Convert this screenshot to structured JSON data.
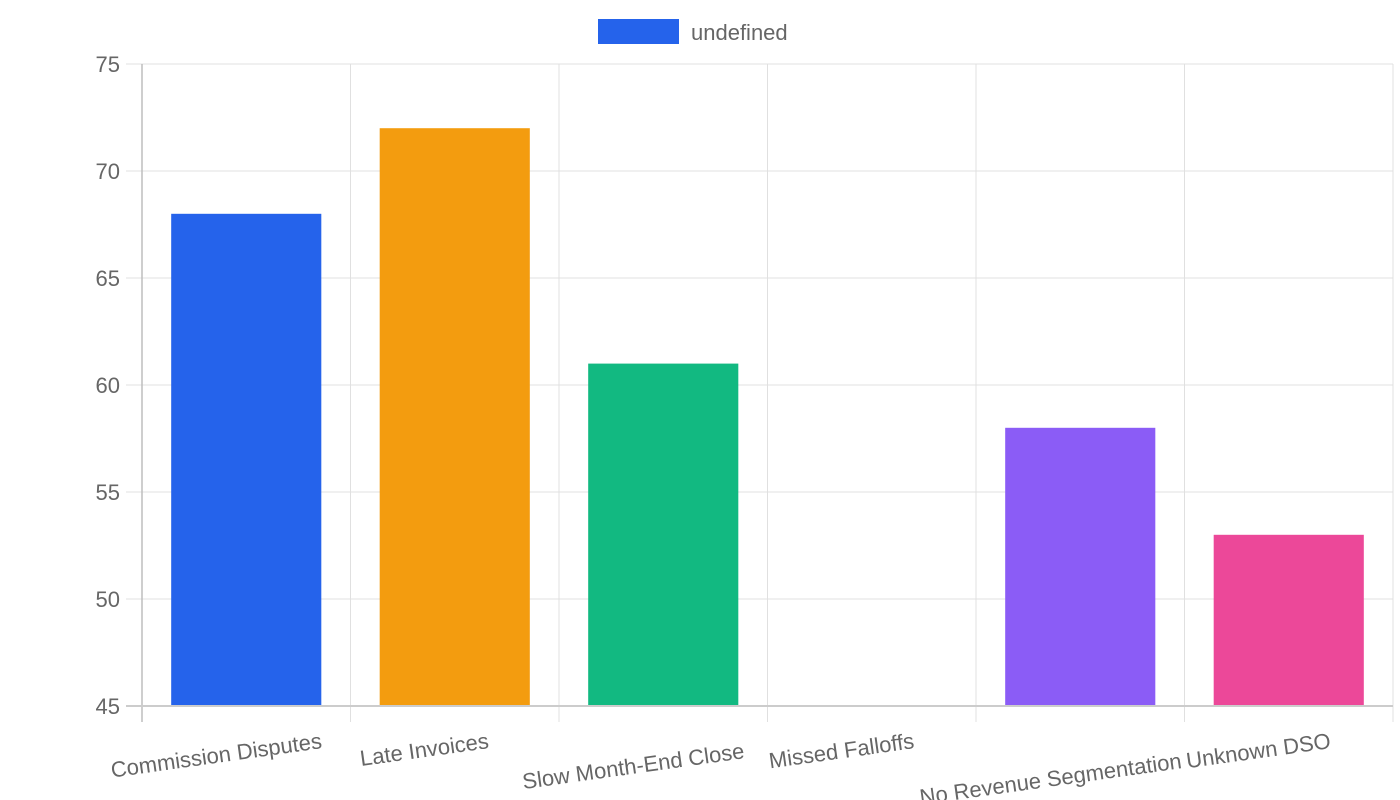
{
  "chart_data": {
    "type": "bar",
    "title": "",
    "xlabel": "",
    "ylabel": "",
    "legend": {
      "position": "top",
      "entries": [
        {
          "label": "undefined",
          "color": "#2563eb"
        }
      ]
    },
    "categories": [
      "Commission Disputes",
      "Late Invoices",
      "Slow Month-End Close",
      "Missed Falloffs",
      "No Revenue Segmentation",
      "Unknown DSO"
    ],
    "values": [
      68,
      72,
      61,
      45,
      58,
      53
    ],
    "colors": [
      "#2563eb",
      "#f39c0f",
      "#12b981",
      "#f5f5f5",
      "#8b5cf6",
      "#ec4899"
    ],
    "ylim": [
      45,
      75
    ],
    "yticks": [
      45,
      50,
      55,
      60,
      65,
      70,
      75
    ],
    "grid": true,
    "xtick_rotation": -8
  },
  "legend": {
    "label": "undefined",
    "swatch_color": "#2563eb"
  }
}
